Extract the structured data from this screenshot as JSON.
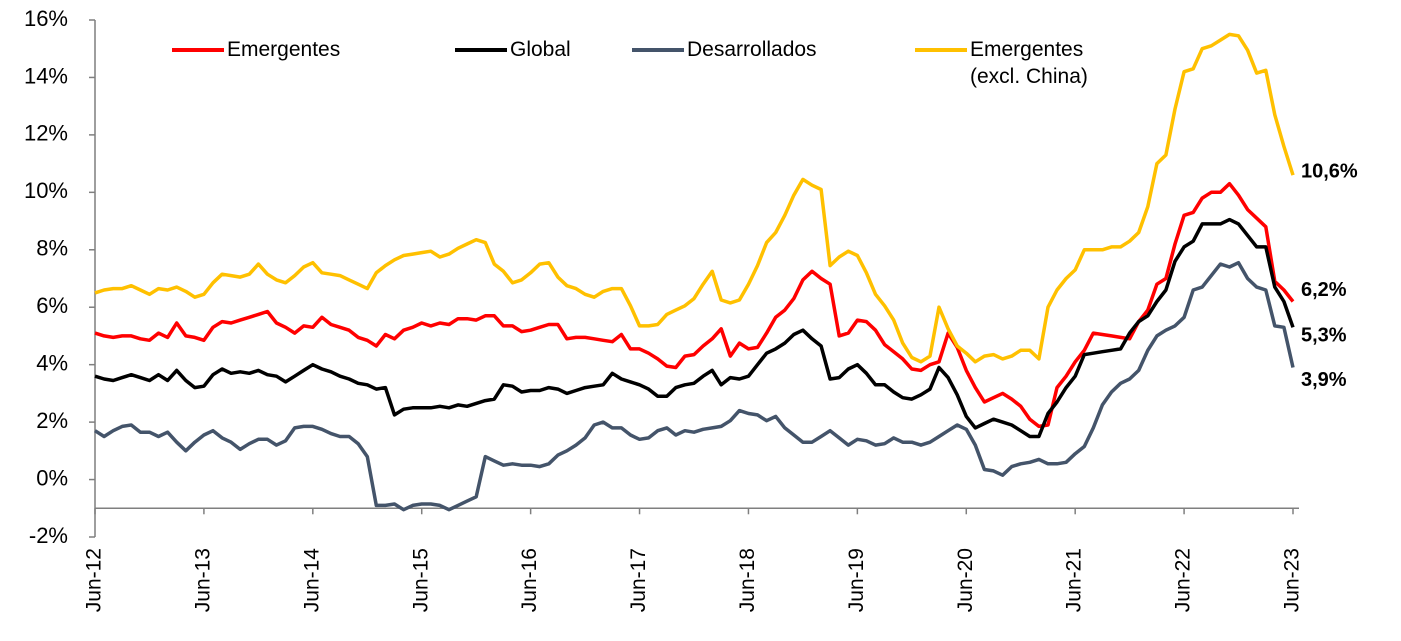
{
  "chart_data": {
    "type": "line",
    "categories": [
      "Jun-12",
      null,
      null,
      null,
      null,
      null,
      null,
      null,
      null,
      null,
      null,
      null,
      "Jun-13",
      null,
      null,
      null,
      null,
      null,
      null,
      null,
      null,
      null,
      null,
      null,
      "Jun-14",
      null,
      null,
      null,
      null,
      null,
      null,
      null,
      null,
      null,
      null,
      null,
      "Jun-15",
      null,
      null,
      null,
      null,
      null,
      null,
      null,
      null,
      null,
      null,
      null,
      "Jun-16",
      null,
      null,
      null,
      null,
      null,
      null,
      null,
      null,
      null,
      null,
      null,
      "Jun-17",
      null,
      null,
      null,
      null,
      null,
      null,
      null,
      null,
      null,
      null,
      null,
      "Jun-18",
      null,
      null,
      null,
      null,
      null,
      null,
      null,
      null,
      null,
      null,
      null,
      "Jun-19",
      null,
      null,
      null,
      null,
      null,
      null,
      null,
      null,
      null,
      null,
      null,
      "Jun-20",
      null,
      null,
      null,
      null,
      null,
      null,
      null,
      null,
      null,
      null,
      null,
      "Jun-21",
      null,
      null,
      null,
      null,
      null,
      null,
      null,
      null,
      null,
      null,
      null,
      "Jun-22",
      null,
      null,
      null,
      null,
      null,
      null,
      null,
      null,
      null,
      null,
      null,
      "Jun-23"
    ],
    "series": [
      {
        "name": "Emergentes",
        "color": "#ff0000",
        "end_label": "6,2%",
        "values": [
          5.1,
          5.0,
          4.95,
          5.0,
          5.0,
          4.9,
          4.85,
          5.1,
          4.95,
          5.45,
          5.0,
          4.95,
          4.85,
          5.3,
          5.5,
          5.45,
          5.55,
          5.65,
          5.75,
          5.85,
          5.45,
          5.3,
          5.1,
          5.35,
          5.3,
          5.65,
          5.4,
          5.3,
          5.2,
          4.95,
          4.85,
          4.65,
          5.05,
          4.9,
          5.2,
          5.3,
          5.45,
          5.35,
          5.45,
          5.4,
          5.6,
          5.6,
          5.55,
          5.7,
          5.7,
          5.35,
          5.35,
          5.15,
          5.2,
          5.3,
          5.4,
          5.4,
          4.9,
          4.95,
          4.95,
          4.9,
          4.85,
          4.8,
          5.05,
          4.55,
          4.55,
          4.4,
          4.2,
          3.95,
          3.9,
          4.3,
          4.35,
          4.65,
          4.9,
          5.25,
          4.3,
          4.75,
          4.55,
          4.6,
          5.1,
          5.65,
          5.9,
          6.3,
          6.95,
          7.25,
          7.0,
          6.8,
          5.0,
          5.1,
          5.55,
          5.5,
          5.2,
          4.7,
          4.45,
          4.2,
          3.85,
          3.8,
          4.0,
          4.1,
          5.1,
          4.6,
          3.8,
          3.2,
          2.7,
          2.85,
          3.0,
          2.8,
          2.55,
          2.1,
          1.85,
          1.9,
          3.2,
          3.6,
          4.1,
          4.5,
          5.1,
          5.05,
          5.0,
          4.95,
          4.9,
          5.5,
          5.9,
          6.8,
          7.0,
          8.2,
          9.2,
          9.3,
          9.8,
          10.0,
          10.0,
          10.3,
          9.9,
          9.4,
          9.1,
          8.8,
          6.9,
          6.6,
          6.2
        ]
      },
      {
        "name": "Global",
        "color": "#000000",
        "end_label": "5,3%",
        "values": [
          3.6,
          3.5,
          3.45,
          3.55,
          3.65,
          3.55,
          3.45,
          3.65,
          3.45,
          3.8,
          3.45,
          3.2,
          3.25,
          3.65,
          3.85,
          3.7,
          3.75,
          3.7,
          3.8,
          3.65,
          3.6,
          3.4,
          3.6,
          3.8,
          4.0,
          3.85,
          3.75,
          3.6,
          3.5,
          3.35,
          3.3,
          3.15,
          3.2,
          2.25,
          2.45,
          2.5,
          2.5,
          2.5,
          2.55,
          2.5,
          2.6,
          2.55,
          2.65,
          2.75,
          2.8,
          3.3,
          3.25,
          3.05,
          3.1,
          3.1,
          3.2,
          3.15,
          3.0,
          3.1,
          3.2,
          3.25,
          3.3,
          3.7,
          3.5,
          3.4,
          3.3,
          3.15,
          2.9,
          2.9,
          3.2,
          3.3,
          3.35,
          3.6,
          3.8,
          3.3,
          3.55,
          3.5,
          3.6,
          4.0,
          4.4,
          4.55,
          4.75,
          5.05,
          5.2,
          4.9,
          4.65,
          3.5,
          3.55,
          3.85,
          4.0,
          3.7,
          3.3,
          3.3,
          3.05,
          2.85,
          2.8,
          2.95,
          3.15,
          3.9,
          3.55,
          2.95,
          2.2,
          1.8,
          1.95,
          2.1,
          2.0,
          1.9,
          1.7,
          1.5,
          1.5,
          2.3,
          2.7,
          3.2,
          3.6,
          4.35,
          4.4,
          4.45,
          4.5,
          4.55,
          5.1,
          5.5,
          5.7,
          6.2,
          6.6,
          7.6,
          8.1,
          8.3,
          8.9,
          8.9,
          8.9,
          9.05,
          8.9,
          8.5,
          8.1,
          8.1,
          6.7,
          6.2,
          5.3
        ]
      },
      {
        "name": "Desarrollados",
        "color": "#44546a",
        "end_label": "3,9%",
        "values": [
          1.7,
          1.5,
          1.7,
          1.85,
          1.9,
          1.65,
          1.65,
          1.5,
          1.65,
          1.3,
          1.0,
          1.3,
          1.55,
          1.7,
          1.45,
          1.3,
          1.05,
          1.25,
          1.4,
          1.4,
          1.2,
          1.35,
          1.8,
          1.85,
          1.85,
          1.75,
          1.6,
          1.5,
          1.5,
          1.25,
          0.8,
          -0.9,
          -0.9,
          -0.85,
          -1.05,
          -0.9,
          -0.85,
          -0.85,
          -0.9,
          -1.05,
          -0.9,
          -0.75,
          -0.6,
          0.8,
          0.65,
          0.5,
          0.55,
          0.5,
          0.5,
          0.45,
          0.55,
          0.85,
          1.0,
          1.2,
          1.45,
          1.9,
          2.0,
          1.8,
          1.8,
          1.55,
          1.4,
          1.45,
          1.7,
          1.8,
          1.55,
          1.7,
          1.65,
          1.75,
          1.8,
          1.85,
          2.05,
          2.4,
          2.3,
          2.25,
          2.05,
          2.2,
          1.8,
          1.55,
          1.3,
          1.3,
          1.5,
          1.7,
          1.45,
          1.2,
          1.4,
          1.35,
          1.2,
          1.25,
          1.45,
          1.3,
          1.3,
          1.2,
          1.3,
          1.5,
          1.7,
          1.9,
          1.75,
          1.2,
          0.35,
          0.3,
          0.15,
          0.45,
          0.55,
          0.6,
          0.7,
          0.55,
          0.55,
          0.6,
          0.9,
          1.15,
          1.8,
          2.6,
          3.05,
          3.35,
          3.5,
          3.8,
          4.5,
          5.0,
          5.2,
          5.35,
          5.65,
          6.6,
          6.7,
          7.1,
          7.5,
          7.4,
          7.55,
          7.0,
          6.7,
          6.6,
          5.35,
          5.3,
          3.9
        ]
      },
      {
        "name": "Emergentes (excl. China)",
        "color": "#ffc000",
        "end_label": "10,6%",
        "values": [
          6.5,
          6.6,
          6.65,
          6.65,
          6.75,
          6.6,
          6.45,
          6.65,
          6.6,
          6.7,
          6.55,
          6.35,
          6.45,
          6.85,
          7.15,
          7.1,
          7.05,
          7.15,
          7.5,
          7.15,
          6.95,
          6.85,
          7.1,
          7.4,
          7.55,
          7.2,
          7.15,
          7.1,
          6.95,
          6.8,
          6.65,
          7.2,
          7.45,
          7.65,
          7.8,
          7.85,
          7.9,
          7.95,
          7.75,
          7.85,
          8.05,
          8.2,
          8.35,
          8.25,
          7.5,
          7.25,
          6.85,
          6.95,
          7.2,
          7.5,
          7.55,
          7.05,
          6.75,
          6.65,
          6.45,
          6.35,
          6.55,
          6.65,
          6.65,
          6.05,
          5.35,
          5.35,
          5.4,
          5.75,
          5.9,
          6.05,
          6.3,
          6.8,
          7.25,
          6.25,
          6.15,
          6.25,
          6.8,
          7.45,
          8.25,
          8.6,
          9.2,
          9.9,
          10.45,
          10.25,
          10.1,
          7.45,
          7.75,
          7.95,
          7.8,
          7.2,
          6.45,
          6.05,
          5.55,
          4.75,
          4.25,
          4.1,
          4.3,
          6.0,
          5.25,
          4.65,
          4.4,
          4.1,
          4.3,
          4.35,
          4.2,
          4.3,
          4.5,
          4.5,
          4.2,
          6.0,
          6.6,
          7.0,
          7.3,
          8.0,
          8.0,
          8.0,
          8.1,
          8.1,
          8.3,
          8.6,
          9.5,
          11.0,
          11.3,
          12.9,
          14.2,
          14.3,
          15.0,
          15.1,
          15.3,
          15.5,
          15.45,
          14.95,
          14.15,
          14.25,
          12.7,
          11.6,
          10.6
        ]
      }
    ],
    "ylim": [
      -2,
      16
    ],
    "yticks": [
      {
        "value": -2,
        "label": "-2%"
      },
      {
        "value": 0,
        "label": "0%"
      },
      {
        "value": 2,
        "label": "2%"
      },
      {
        "value": 4,
        "label": "4%"
      },
      {
        "value": 6,
        "label": "6%"
      },
      {
        "value": 8,
        "label": "8%"
      },
      {
        "value": 10,
        "label": "10%"
      },
      {
        "value": 12,
        "label": "12%"
      },
      {
        "value": 14,
        "label": "14%"
      },
      {
        "value": 16,
        "label": "16%"
      }
    ],
    "x_axis_at": -1,
    "grid": false,
    "legend": "top"
  }
}
